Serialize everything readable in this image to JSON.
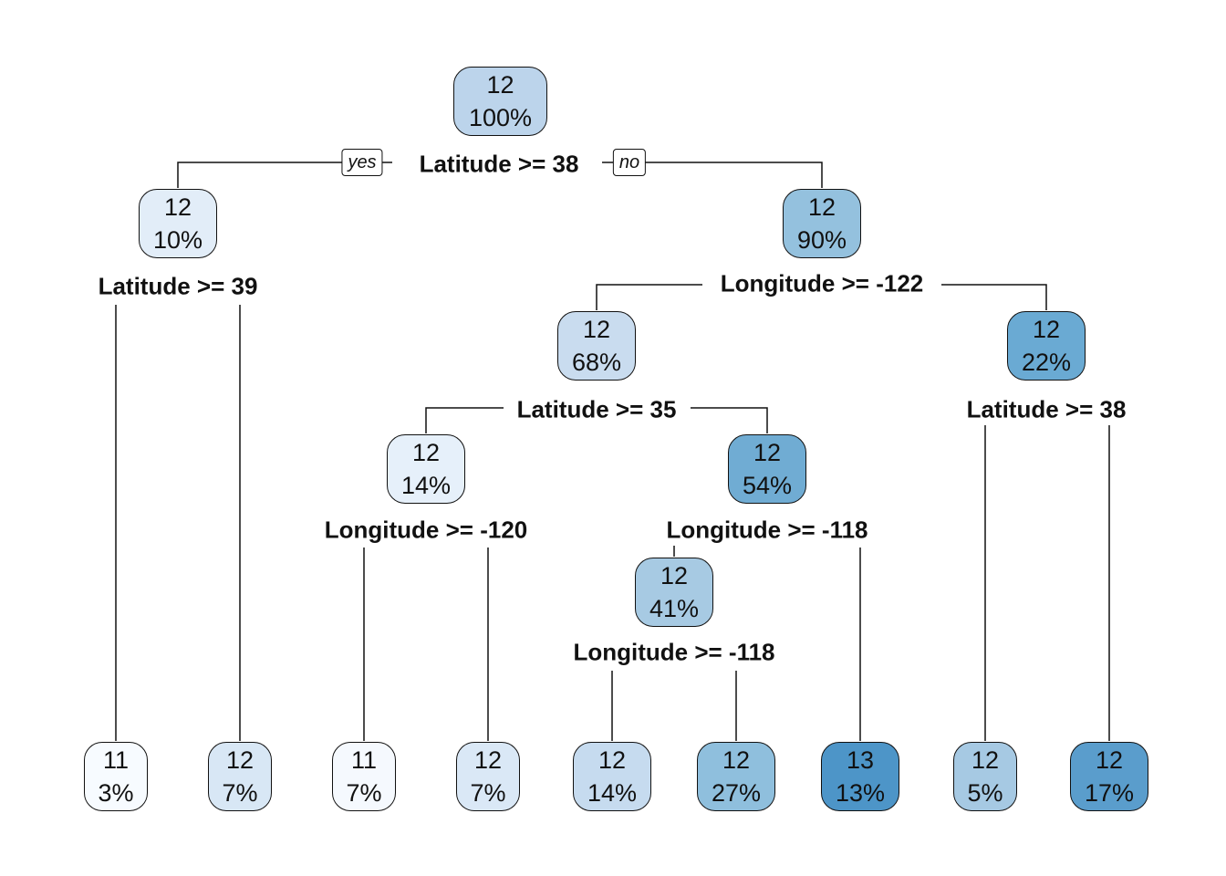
{
  "nodes": [
    {
      "id": "n1",
      "value": "12",
      "percent": "100%",
      "fill": "#bcd4eb"
    },
    {
      "id": "n2",
      "value": "12",
      "percent": "10%",
      "fill": "#e2edf8"
    },
    {
      "id": "n3",
      "value": "12",
      "percent": "90%",
      "fill": "#94c1de"
    },
    {
      "id": "n6",
      "value": "12",
      "percent": "68%",
      "fill": "#c9dcef"
    },
    {
      "id": "n7",
      "value": "12",
      "percent": "22%",
      "fill": "#6aaad3"
    },
    {
      "id": "n12",
      "value": "12",
      "percent": "14%",
      "fill": "#e6f0fa"
    },
    {
      "id": "n13",
      "value": "12",
      "percent": "54%",
      "fill": "#70acd3"
    },
    {
      "id": "n26",
      "value": "12",
      "percent": "41%",
      "fill": "#a7cae3"
    },
    {
      "id": "l4",
      "value": "11",
      "percent": "3%",
      "fill": "#f7fbff"
    },
    {
      "id": "l5",
      "value": "12",
      "percent": "7%",
      "fill": "#d8e7f5"
    },
    {
      "id": "l24",
      "value": "11",
      "percent": "7%",
      "fill": "#f5f9fe"
    },
    {
      "id": "l25",
      "value": "12",
      "percent": "7%",
      "fill": "#dae8f6"
    },
    {
      "id": "l52",
      "value": "12",
      "percent": "14%",
      "fill": "#c6dbef"
    },
    {
      "id": "l53",
      "value": "12",
      "percent": "27%",
      "fill": "#8fbfdd"
    },
    {
      "id": "l27",
      "value": "13",
      "percent": "13%",
      "fill": "#4d95c8"
    },
    {
      "id": "l14",
      "value": "12",
      "percent": "5%",
      "fill": "#a6c9e3"
    },
    {
      "id": "l15",
      "value": "12",
      "percent": "17%",
      "fill": "#5a9dcc"
    }
  ],
  "splits": [
    {
      "id": "s1",
      "label": "Latitude >= 38"
    },
    {
      "id": "s2",
      "label": "Latitude >= 39"
    },
    {
      "id": "s3",
      "label": "Longitude >= -122"
    },
    {
      "id": "s6",
      "label": "Latitude >= 35"
    },
    {
      "id": "s7",
      "label": "Latitude >= 38"
    },
    {
      "id": "s12",
      "label": "Longitude >= -120"
    },
    {
      "id": "s13",
      "label": "Longitude >= -118"
    },
    {
      "id": "s26",
      "label": "Longitude >= -118"
    }
  ],
  "branch_labels": {
    "yes": "yes",
    "no": "no"
  }
}
